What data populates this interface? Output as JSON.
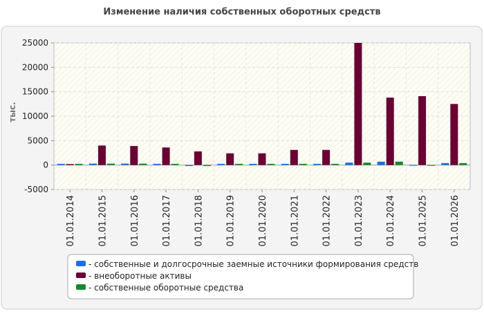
{
  "chart_data": {
    "type": "bar",
    "title": "Изменение наличия собственных оборотных средств",
    "y_label": "тыс.",
    "categories": [
      "01.01.2014",
      "01.01.2015",
      "01.01.2016",
      "01.01.2017",
      "01.01.2018",
      "01.01.2019",
      "01.01.2020",
      "01.01.2021",
      "01.01.2022",
      "01.01.2023",
      "01.01.2024",
      "01.01.2025",
      "01.01.2026"
    ],
    "series": [
      {
        "name": "- собственные и долгосрочные заемные источники формирования средств",
        "color": "#1a6ee8",
        "values": [
          250,
          300,
          300,
          250,
          -200,
          250,
          250,
          250,
          250,
          500,
          700,
          -100,
          400
        ]
      },
      {
        "name": "- внеоборотные активы",
        "color": "#6b0033",
        "values": [
          200,
          4000,
          3900,
          3600,
          2800,
          2400,
          2400,
          3100,
          3100,
          25000,
          13800,
          14100,
          12500
        ]
      },
      {
        "name": "- собственные оборотные средства",
        "color": "#138a2e",
        "values": [
          250,
          300,
          300,
          250,
          -200,
          250,
          250,
          250,
          250,
          500,
          700,
          -100,
          400
        ]
      }
    ],
    "ylim": [
      -5000,
      25000
    ],
    "yticks": [
      -5000,
      0,
      5000,
      10000,
      15000,
      20000,
      25000
    ],
    "grid": true
  }
}
